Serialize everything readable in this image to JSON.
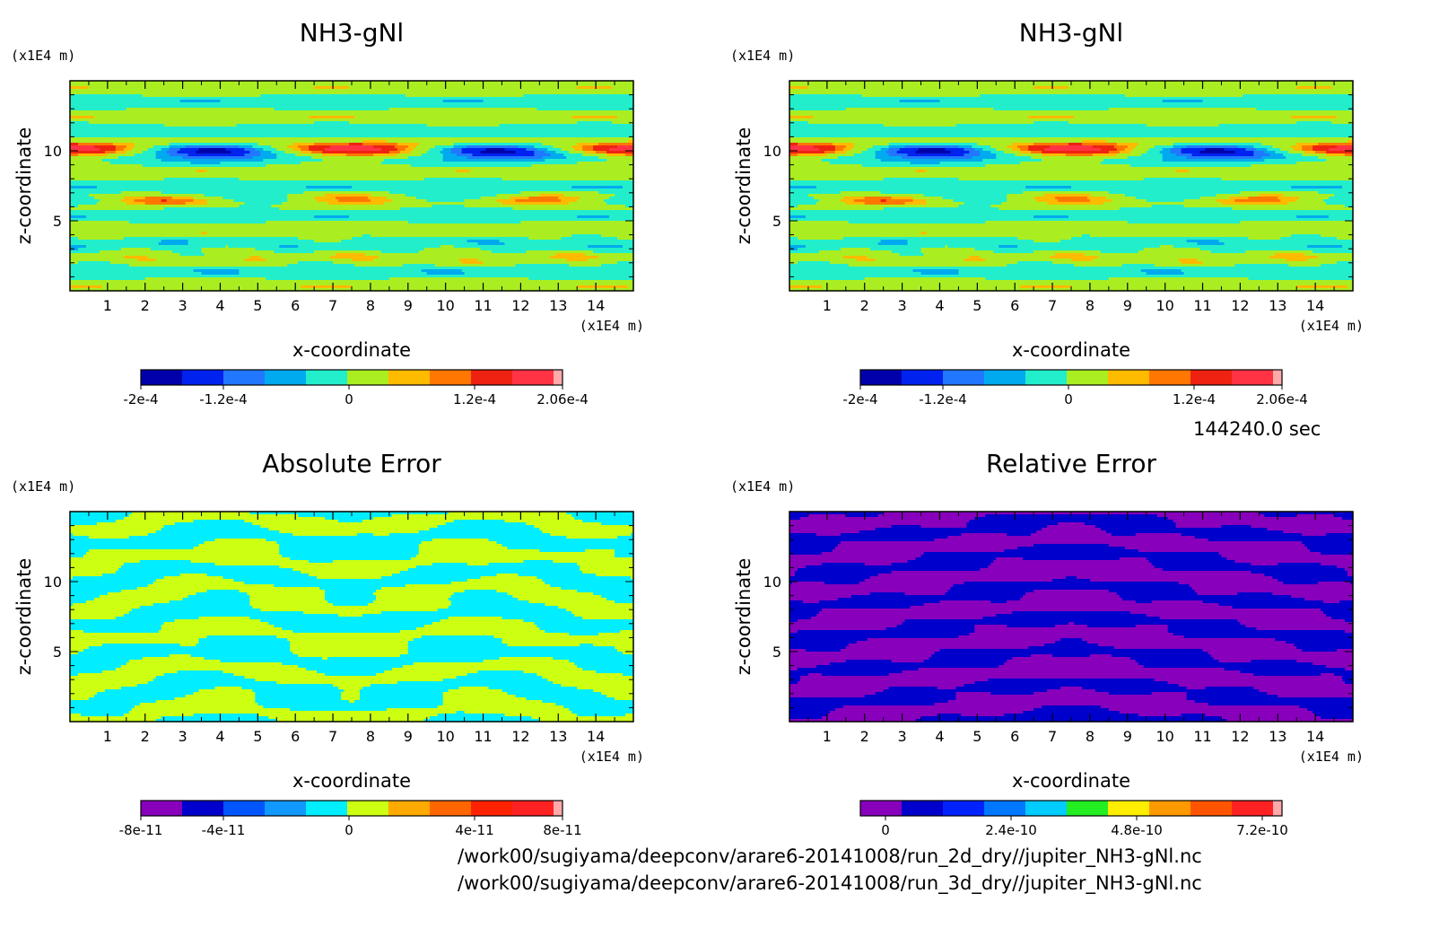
{
  "time_label": "144240.0 sec",
  "file_paths": [
    "/work00/sugiyama/deepconv/arare6-20141008/run_2d_dry//jupiter_NH3-gNl.nc",
    "/work00/sugiyama/deepconv/arare6-20141008/run_3d_dry//jupiter_NH3-gNl.nc"
  ],
  "chart_data": [
    {
      "type": "heatmap",
      "title": "NH3-gNl",
      "xlabel": "x-coordinate",
      "ylabel": "z-coordinate",
      "x_unit": "(x1E4 m)",
      "y_unit": "(x1E4 m)",
      "x_ticks": [
        "1",
        "2",
        "3",
        "4",
        "5",
        "6",
        "7",
        "8",
        "9",
        "10",
        "11",
        "12",
        "13",
        "14"
      ],
      "y_ticks": [
        "5",
        "10"
      ],
      "xlim": [
        0,
        15
      ],
      "ylim": [
        0,
        15
      ],
      "pattern": "field",
      "colorbar": {
        "colors": [
          "#0000aa",
          "#0022ee",
          "#2277ff",
          "#00aaee",
          "#22eecc",
          "#aaee22",
          "#ffbb00",
          "#ff7700",
          "#ee2211",
          "#ff3344",
          "#ffaaaa"
        ],
        "tick_labels": [
          "-2e-4",
          "-1.2e-4",
          "0",
          "1.2e-4",
          "2.06e-4"
        ]
      }
    },
    {
      "type": "heatmap",
      "title": "NH3-gNl",
      "xlabel": "x-coordinate",
      "ylabel": "z-coordinate",
      "x_unit": "(x1E4 m)",
      "y_unit": "(x1E4 m)",
      "x_ticks": [
        "1",
        "2",
        "3",
        "4",
        "5",
        "6",
        "7",
        "8",
        "9",
        "10",
        "11",
        "12",
        "13",
        "14"
      ],
      "y_ticks": [
        "5",
        "10"
      ],
      "xlim": [
        0,
        15
      ],
      "ylim": [
        0,
        15
      ],
      "pattern": "field",
      "colorbar": {
        "colors": [
          "#0000aa",
          "#0022ee",
          "#2277ff",
          "#00aaee",
          "#22eecc",
          "#aaee22",
          "#ffbb00",
          "#ff7700",
          "#ee2211",
          "#ff3344",
          "#ffaaaa"
        ],
        "tick_labels": [
          "-2e-4",
          "-1.2e-4",
          "0",
          "1.2e-4",
          "2.06e-4"
        ]
      }
    },
    {
      "type": "heatmap",
      "title": "Absolute Error",
      "xlabel": "x-coordinate",
      "ylabel": "z-coordinate",
      "x_unit": "(x1E4 m)",
      "y_unit": "(x1E4 m)",
      "x_ticks": [
        "1",
        "2",
        "3",
        "4",
        "5",
        "6",
        "7",
        "8",
        "9",
        "10",
        "11",
        "12",
        "13",
        "14"
      ],
      "y_ticks": [
        "5",
        "10"
      ],
      "xlim": [
        0,
        15
      ],
      "ylim": [
        0,
        15
      ],
      "pattern": "abs",
      "colorbar": {
        "colors": [
          "#8800bb",
          "#0000cc",
          "#0055ff",
          "#1199ff",
          "#00eeff",
          "#ccff11",
          "#ffaa00",
          "#ff6600",
          "#ff2200",
          "#ff2222",
          "#ffaaaa"
        ],
        "tick_labels": [
          "-8e-11",
          "-4e-11",
          "0",
          "4e-11",
          "8e-11"
        ]
      }
    },
    {
      "type": "heatmap",
      "title": "Relative Error",
      "xlabel": "x-coordinate",
      "ylabel": "z-coordinate",
      "x_unit": "(x1E4 m)",
      "y_unit": "(x1E4 m)",
      "x_ticks": [
        "1",
        "2",
        "3",
        "4",
        "5",
        "6",
        "7",
        "8",
        "9",
        "10",
        "11",
        "12",
        "13",
        "14"
      ],
      "y_ticks": [
        "5",
        "10"
      ],
      "xlim": [
        0,
        15
      ],
      "ylim": [
        0,
        15
      ],
      "pattern": "rel",
      "colorbar": {
        "colors": [
          "#8800bb",
          "#0000cc",
          "#0022ff",
          "#0077ff",
          "#00ccff",
          "#22ee22",
          "#ffee00",
          "#ff9900",
          "#ff5500",
          "#ff2222",
          "#ffaaaa"
        ],
        "tick_labels": [
          "0",
          "2.4e-10",
          "4.8e-10",
          "7.2e-10"
        ]
      }
    }
  ]
}
